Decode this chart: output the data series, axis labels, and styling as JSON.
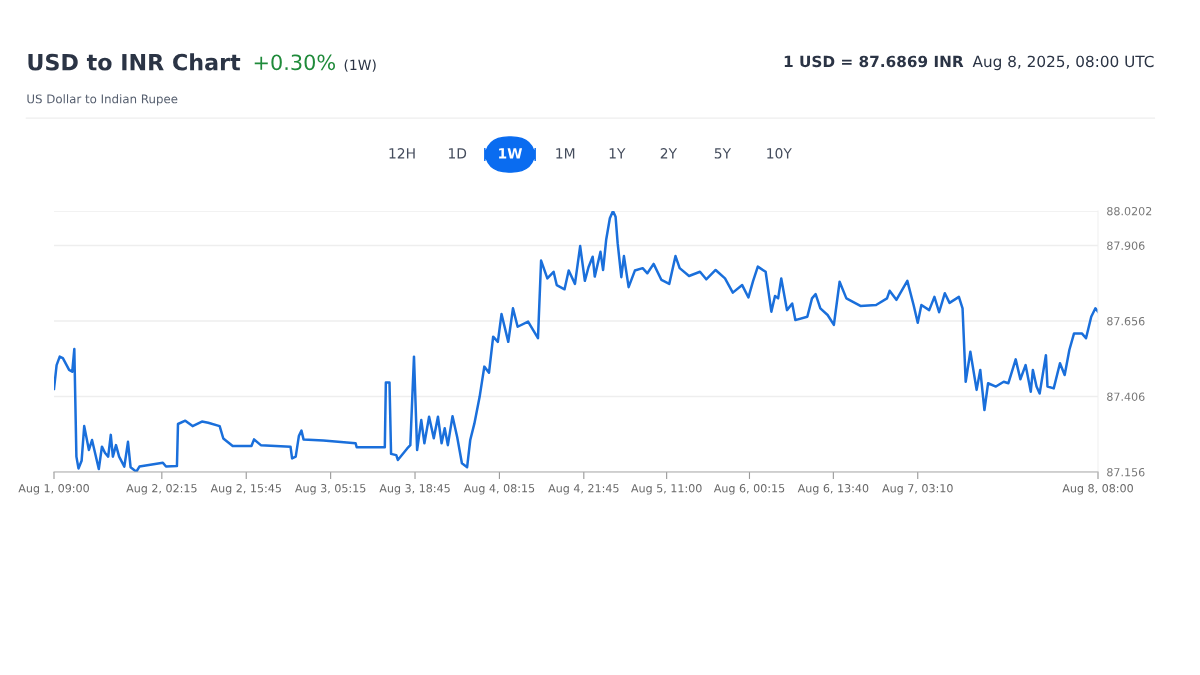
{
  "chart_data": {
    "type": "line",
    "title": "USD to INR Chart",
    "subtitle": "US Dollar to Indian Rupee",
    "annotations": [
      "+0.30%",
      "(1W)",
      "1 USD = 87.6869 INR",
      "Aug 8, 2025, 08:00 UTC",
      "12H",
      "1D",
      "1W",
      "1M",
      "1Y",
      "2Y",
      "5Y",
      "10Y"
    ],
    "x": [
      "2025-08-01T09:00",
      "2025-08-01T09:25",
      "2025-08-01T09:55",
      "2025-08-01T10:25",
      "2025-08-01T11:25",
      "2025-08-01T11:55",
      "2025-08-01T12:15",
      "2025-08-01T12:35",
      "2025-08-01T12:55",
      "2025-08-01T13:25",
      "2025-08-01T13:50",
      "2025-08-01T14:35",
      "2025-08-01T15:05",
      "2025-08-01T16:10",
      "2025-08-01T16:40",
      "2025-08-01T17:10",
      "2025-08-01T17:40",
      "2025-08-01T18:05",
      "2025-08-01T18:25",
      "2025-08-01T18:55",
      "2025-08-01T19:25",
      "2025-08-01T20:15",
      "2025-08-01T20:50",
      "2025-08-01T21:15",
      "2025-08-01T22:10",
      "2025-08-01T22:40",
      "2025-08-02T00:10",
      "2025-08-02T02:25",
      "2025-08-02T02:55",
      "2025-08-02T04:40",
      "2025-08-02T04:50",
      "2025-08-02T06:00",
      "2025-08-02T07:10",
      "2025-08-02T08:40",
      "2025-08-02T09:40",
      "2025-08-02T11:30",
      "2025-08-02T12:05",
      "2025-08-02T13:35",
      "2025-08-02T16:35",
      "2025-08-02T17:00",
      "2025-08-02T18:05",
      "2025-08-02T22:50",
      "2025-08-02T23:05",
      "2025-08-02T23:40",
      "2025-08-03T00:10",
      "2025-08-03T00:35",
      "2025-08-03T00:55",
      "2025-08-03T04:05",
      "2025-08-03T09:15",
      "2025-08-03T09:25",
      "2025-08-03T13:55",
      "2025-08-03T14:05",
      "2025-08-03T14:40",
      "2025-08-03T14:55",
      "2025-08-03T15:45",
      "2025-08-03T16:00",
      "2025-08-03T17:30",
      "2025-08-03T18:00",
      "2025-08-03T18:35",
      "2025-08-03T19:05",
      "2025-08-03T19:45",
      "2025-08-03T20:15",
      "2025-08-03T21:00",
      "2025-08-03T21:45",
      "2025-08-03T22:25",
      "2025-08-03T23:00",
      "2025-08-03T23:30",
      "2025-08-04T00:00",
      "2025-08-04T00:45",
      "2025-08-04T01:30",
      "2025-08-04T02:15",
      "2025-08-04T03:05",
      "2025-08-04T03:35",
      "2025-08-04T04:15",
      "2025-08-04T05:05",
      "2025-08-04T05:50",
      "2025-08-04T06:35",
      "2025-08-04T07:15",
      "2025-08-04T08:00",
      "2025-08-04T08:35",
      "2025-08-04T09:40",
      "2025-08-04T10:25",
      "2025-08-04T11:10",
      "2025-08-04T12:50",
      "2025-08-04T14:25",
      "2025-08-04T14:55",
      "2025-08-04T15:55",
      "2025-08-04T16:55",
      "2025-08-04T17:25",
      "2025-08-04T18:40",
      "2025-08-04T19:20",
      "2025-08-04T20:20",
      "2025-08-04T21:10",
      "2025-08-04T21:55",
      "2025-08-04T22:30",
      "2025-08-04T23:10",
      "2025-08-04T23:30",
      "2025-08-05T00:25",
      "2025-08-05T00:50",
      "2025-08-05T01:20",
      "2025-08-05T01:55",
      "2025-08-05T02:25",
      "2025-08-05T02:50",
      "2025-08-05T03:10",
      "2025-08-05T03:45",
      "2025-08-05T04:10",
      "2025-08-05T04:55",
      "2025-08-05T05:55",
      "2025-08-05T07:10",
      "2025-08-05T07:55",
      "2025-08-05T08:55",
      "2025-08-05T10:10",
      "2025-08-05T11:25",
      "2025-08-05T12:25",
      "2025-08-05T13:05",
      "2025-08-05T14:35",
      "2025-08-05T16:20",
      "2025-08-05T17:20",
      "2025-08-05T18:50",
      "2025-08-05T20:20",
      "2025-08-05T21:35",
      "2025-08-05T23:05",
      "2025-08-06T00:05",
      "2025-08-06T00:50",
      "2025-08-06T01:35",
      "2025-08-06T02:50",
      "2025-08-06T03:45",
      "2025-08-06T04:20",
      "2025-08-06T04:50",
      "2025-08-06T05:20",
      "2025-08-06T06:15",
      "2025-08-06T07:05",
      "2025-08-06T07:35",
      "2025-08-06T09:30",
      "2025-08-06T10:15",
      "2025-08-06T10:50",
      "2025-08-06T11:35",
      "2025-08-06T12:45",
      "2025-08-06T13:45",
      "2025-08-06T14:40",
      "2025-08-06T15:45",
      "2025-08-06T18:00",
      "2025-08-06T20:30",
      "2025-08-06T22:15",
      "2025-08-06T22:40",
      "2025-08-06T23:45",
      "2025-08-07T01:30",
      "2025-08-07T02:30",
      "2025-08-07T03:10",
      "2025-08-07T03:45",
      "2025-08-07T05:00",
      "2025-08-07T05:50",
      "2025-08-07T06:35",
      "2025-08-07T07:30",
      "2025-08-07T08:15",
      "2025-08-07T09:45",
      "2025-08-07T10:20",
      "2025-08-07T10:50",
      "2025-08-07T11:35",
      "2025-08-07T12:35",
      "2025-08-07T13:10",
      "2025-08-07T13:50",
      "2025-08-07T14:25",
      "2025-08-07T15:40",
      "2025-08-07T16:55",
      "2025-08-07T17:40",
      "2025-08-07T18:50",
      "2025-08-07T19:35",
      "2025-08-07T20:25",
      "2025-08-07T21:15",
      "2025-08-07T21:35",
      "2025-08-07T22:10",
      "2025-08-07T22:40",
      "2025-08-07T23:40",
      "2025-08-07T23:55",
      "2025-08-08T00:55",
      "2025-08-08T01:55",
      "2025-08-08T02:40",
      "2025-08-08T03:25",
      "2025-08-08T04:10",
      "2025-08-08T05:25",
      "2025-08-08T06:05",
      "2025-08-08T06:55",
      "2025-08-08T07:35",
      "2025-08-08T08:00"
    ],
    "series": [
      {
        "color": "#1a6fdb",
        "values": [
          87.431,
          87.51,
          87.538,
          87.533,
          87.494,
          87.488,
          87.563,
          87.207,
          87.168,
          87.193,
          87.308,
          87.229,
          87.262,
          87.166,
          87.24,
          87.219,
          87.207,
          87.279,
          87.207,
          87.245,
          87.207,
          87.174,
          87.256,
          87.172,
          87.157,
          87.174,
          87.179,
          87.187,
          87.174,
          87.176,
          87.315,
          87.326,
          87.308,
          87.323,
          87.319,
          87.308,
          87.267,
          87.242,
          87.242,
          87.264,
          87.245,
          87.24,
          87.201,
          87.207,
          87.275,
          87.293,
          87.264,
          87.26,
          87.251,
          87.238,
          87.238,
          87.452,
          87.452,
          87.216,
          87.212,
          87.196,
          87.234,
          87.245,
          87.538,
          87.229,
          87.328,
          87.251,
          87.339,
          87.268,
          87.339,
          87.251,
          87.301,
          87.245,
          87.341,
          87.271,
          87.185,
          87.172,
          87.262,
          87.317,
          87.405,
          87.505,
          87.485,
          87.604,
          87.587,
          87.679,
          87.587,
          87.698,
          87.637,
          87.654,
          87.599,
          87.856,
          87.797,
          87.819,
          87.775,
          87.761,
          87.823,
          87.779,
          87.904,
          87.789,
          87.834,
          87.869,
          87.803,
          87.885,
          87.825,
          87.926,
          87.996,
          88.02,
          88.001,
          87.913,
          87.801,
          87.871,
          87.768,
          87.823,
          87.831,
          87.814,
          87.845,
          87.792,
          87.779,
          87.871,
          87.831,
          87.805,
          87.819,
          87.794,
          87.825,
          87.797,
          87.75,
          87.775,
          87.734,
          87.789,
          87.836,
          87.819,
          87.687,
          87.739,
          87.731,
          87.797,
          87.692,
          87.714,
          87.659,
          87.67,
          87.731,
          87.745,
          87.698,
          87.676,
          87.643,
          87.786,
          87.731,
          87.706,
          87.709,
          87.731,
          87.756,
          87.726,
          87.789,
          87.709,
          87.65,
          87.709,
          87.692,
          87.736,
          87.685,
          87.748,
          87.716,
          87.736,
          87.698,
          87.455,
          87.554,
          87.428,
          87.494,
          87.361,
          87.45,
          87.439,
          87.455,
          87.45,
          87.529,
          87.463,
          87.51,
          87.422,
          87.494,
          87.439,
          87.416,
          87.543,
          87.439,
          87.433,
          87.516,
          87.477,
          87.56,
          87.615,
          87.615,
          87.599,
          87.67,
          87.698,
          87.687
        ]
      }
    ],
    "xlim": [
      "2025-08-01T09:00",
      "2025-08-08T08:00"
    ],
    "xticks": [
      {
        "value": "2025-08-01T09:00",
        "label": "Aug 1, 09:00"
      },
      {
        "value": "2025-08-02T02:15",
        "label": "Aug 2, 02:15"
      },
      {
        "value": "2025-08-02T15:45",
        "label": "Aug 2, 15:45"
      },
      {
        "value": "2025-08-03T05:15",
        "label": "Aug 3, 05:15"
      },
      {
        "value": "2025-08-03T18:45",
        "label": "Aug 3, 18:45"
      },
      {
        "value": "2025-08-04T08:15",
        "label": "Aug 4, 08:15"
      },
      {
        "value": "2025-08-04T21:45",
        "label": "Aug 4, 21:45"
      },
      {
        "value": "2025-08-05T11:00",
        "label": "Aug 5, 11:00"
      },
      {
        "value": "2025-08-06T00:15",
        "label": "Aug 6, 00:15"
      },
      {
        "value": "2025-08-06T13:40",
        "label": "Aug 6, 13:40"
      },
      {
        "value": "2025-08-07T03:10",
        "label": "Aug 7, 03:10"
      },
      {
        "value": "2025-08-08T08:00",
        "label": "Aug 8, 08:00"
      }
    ],
    "ylim": [
      87.156,
      88.0202
    ],
    "yticks": [
      87.156,
      87.406,
      87.656,
      87.906,
      88.0202
    ],
    "grid": "y",
    "marker": "none",
    "line_style": "solid"
  }
}
